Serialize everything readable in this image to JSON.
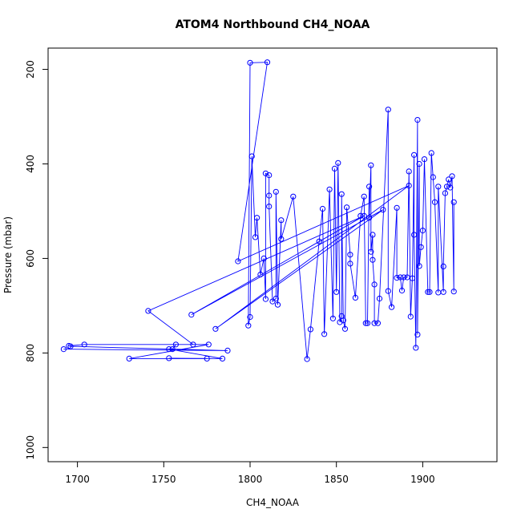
{
  "chart_data": {
    "type": "scatter",
    "title": "ATOM4 Northbound CH4_NOAA",
    "xlabel": "CH4_NOAA",
    "ylabel": "Pressure (mbar)",
    "xlim": [
      1683,
      1943
    ],
    "ylim": [
      1030,
      155
    ],
    "y_reversed": true,
    "x_ticks": [
      1700,
      1750,
      1800,
      1850,
      1900
    ],
    "y_ticks": [
      200,
      400,
      600,
      800,
      1000
    ],
    "grid": false,
    "legend": "none",
    "color": "#0000ff",
    "series": [
      {
        "points": [
          [
            1692,
            792
          ],
          [
            1787,
            795
          ],
          [
            1696,
            786
          ],
          [
            1695,
            785
          ],
          [
            1704,
            782
          ],
          [
            1776,
            782
          ],
          [
            1730,
            812
          ],
          [
            1775,
            812
          ],
          [
            1753,
            811
          ],
          [
            1784,
            812
          ],
          [
            1753,
            792
          ],
          [
            1755,
            792
          ],
          [
            1757,
            782
          ],
          [
            1767,
            782
          ],
          [
            1741,
            711
          ],
          [
            1866,
            510
          ],
          [
            1766,
            719
          ],
          [
            1877,
            497
          ],
          [
            1780,
            749
          ],
          [
            1892,
            446
          ],
          [
            1793,
            606
          ],
          [
            1810,
            185
          ],
          [
            1800,
            186
          ],
          [
            1799,
            742
          ],
          [
            1800,
            724
          ],
          [
            1801,
            384
          ],
          [
            1803,
            555
          ],
          [
            1804,
            514
          ],
          [
            1806,
            634
          ],
          [
            1808,
            600
          ],
          [
            1809,
            686
          ],
          [
            1809,
            420
          ],
          [
            1811,
            424
          ],
          [
            1811,
            467
          ],
          [
            1811,
            490
          ],
          [
            1813,
            691
          ],
          [
            1815,
            685
          ],
          [
            1815,
            459
          ],
          [
            1816,
            698
          ],
          [
            1818,
            519
          ],
          [
            1818,
            559
          ],
          [
            1825,
            469
          ],
          [
            1833,
            813
          ],
          [
            1835,
            750
          ],
          [
            1840,
            564
          ],
          [
            1842,
            495
          ],
          [
            1843,
            760
          ],
          [
            1846,
            454
          ],
          [
            1848,
            727
          ],
          [
            1849,
            410
          ],
          [
            1850,
            671
          ],
          [
            1851,
            398
          ],
          [
            1852,
            735
          ],
          [
            1853,
            722
          ],
          [
            1853,
            464
          ],
          [
            1854,
            731
          ],
          [
            1855,
            749
          ],
          [
            1856,
            492
          ],
          [
            1858,
            592
          ],
          [
            1858,
            611
          ],
          [
            1861,
            683
          ],
          [
            1864,
            510
          ],
          [
            1866,
            469
          ],
          [
            1867,
            737
          ],
          [
            1868,
            737
          ],
          [
            1869,
            448
          ],
          [
            1869,
            514
          ],
          [
            1870,
            403
          ],
          [
            1870,
            586
          ],
          [
            1871,
            550
          ],
          [
            1871,
            603
          ],
          [
            1872,
            655
          ],
          [
            1872,
            737
          ],
          [
            1874,
            737
          ],
          [
            1875,
            685
          ],
          [
            1880,
            285
          ],
          [
            1880,
            669
          ],
          [
            1882,
            703
          ],
          [
            1885,
            493
          ],
          [
            1885,
            641
          ],
          [
            1887,
            640
          ],
          [
            1888,
            668
          ],
          [
            1889,
            640
          ],
          [
            1891,
            640
          ],
          [
            1892,
            416
          ],
          [
            1893,
            723
          ],
          [
            1894,
            642
          ],
          [
            1895,
            381
          ],
          [
            1895,
            550
          ],
          [
            1896,
            789
          ],
          [
            1897,
            307
          ],
          [
            1897,
            761
          ],
          [
            1898,
            400
          ],
          [
            1898,
            616
          ],
          [
            1899,
            576
          ],
          [
            1900,
            541
          ],
          [
            1901,
            390
          ],
          [
            1903,
            671
          ],
          [
            1904,
            671
          ],
          [
            1905,
            377
          ],
          [
            1906,
            428
          ],
          [
            1907,
            481
          ],
          [
            1909,
            672
          ],
          [
            1909,
            448
          ],
          [
            1912,
            671
          ],
          [
            1912,
            617
          ],
          [
            1913,
            462
          ],
          [
            1914,
            448
          ],
          [
            1915,
            433
          ],
          [
            1916,
            450
          ],
          [
            1917,
            426
          ],
          [
            1918,
            670
          ],
          [
            1918,
            481
          ]
        ]
      }
    ]
  }
}
